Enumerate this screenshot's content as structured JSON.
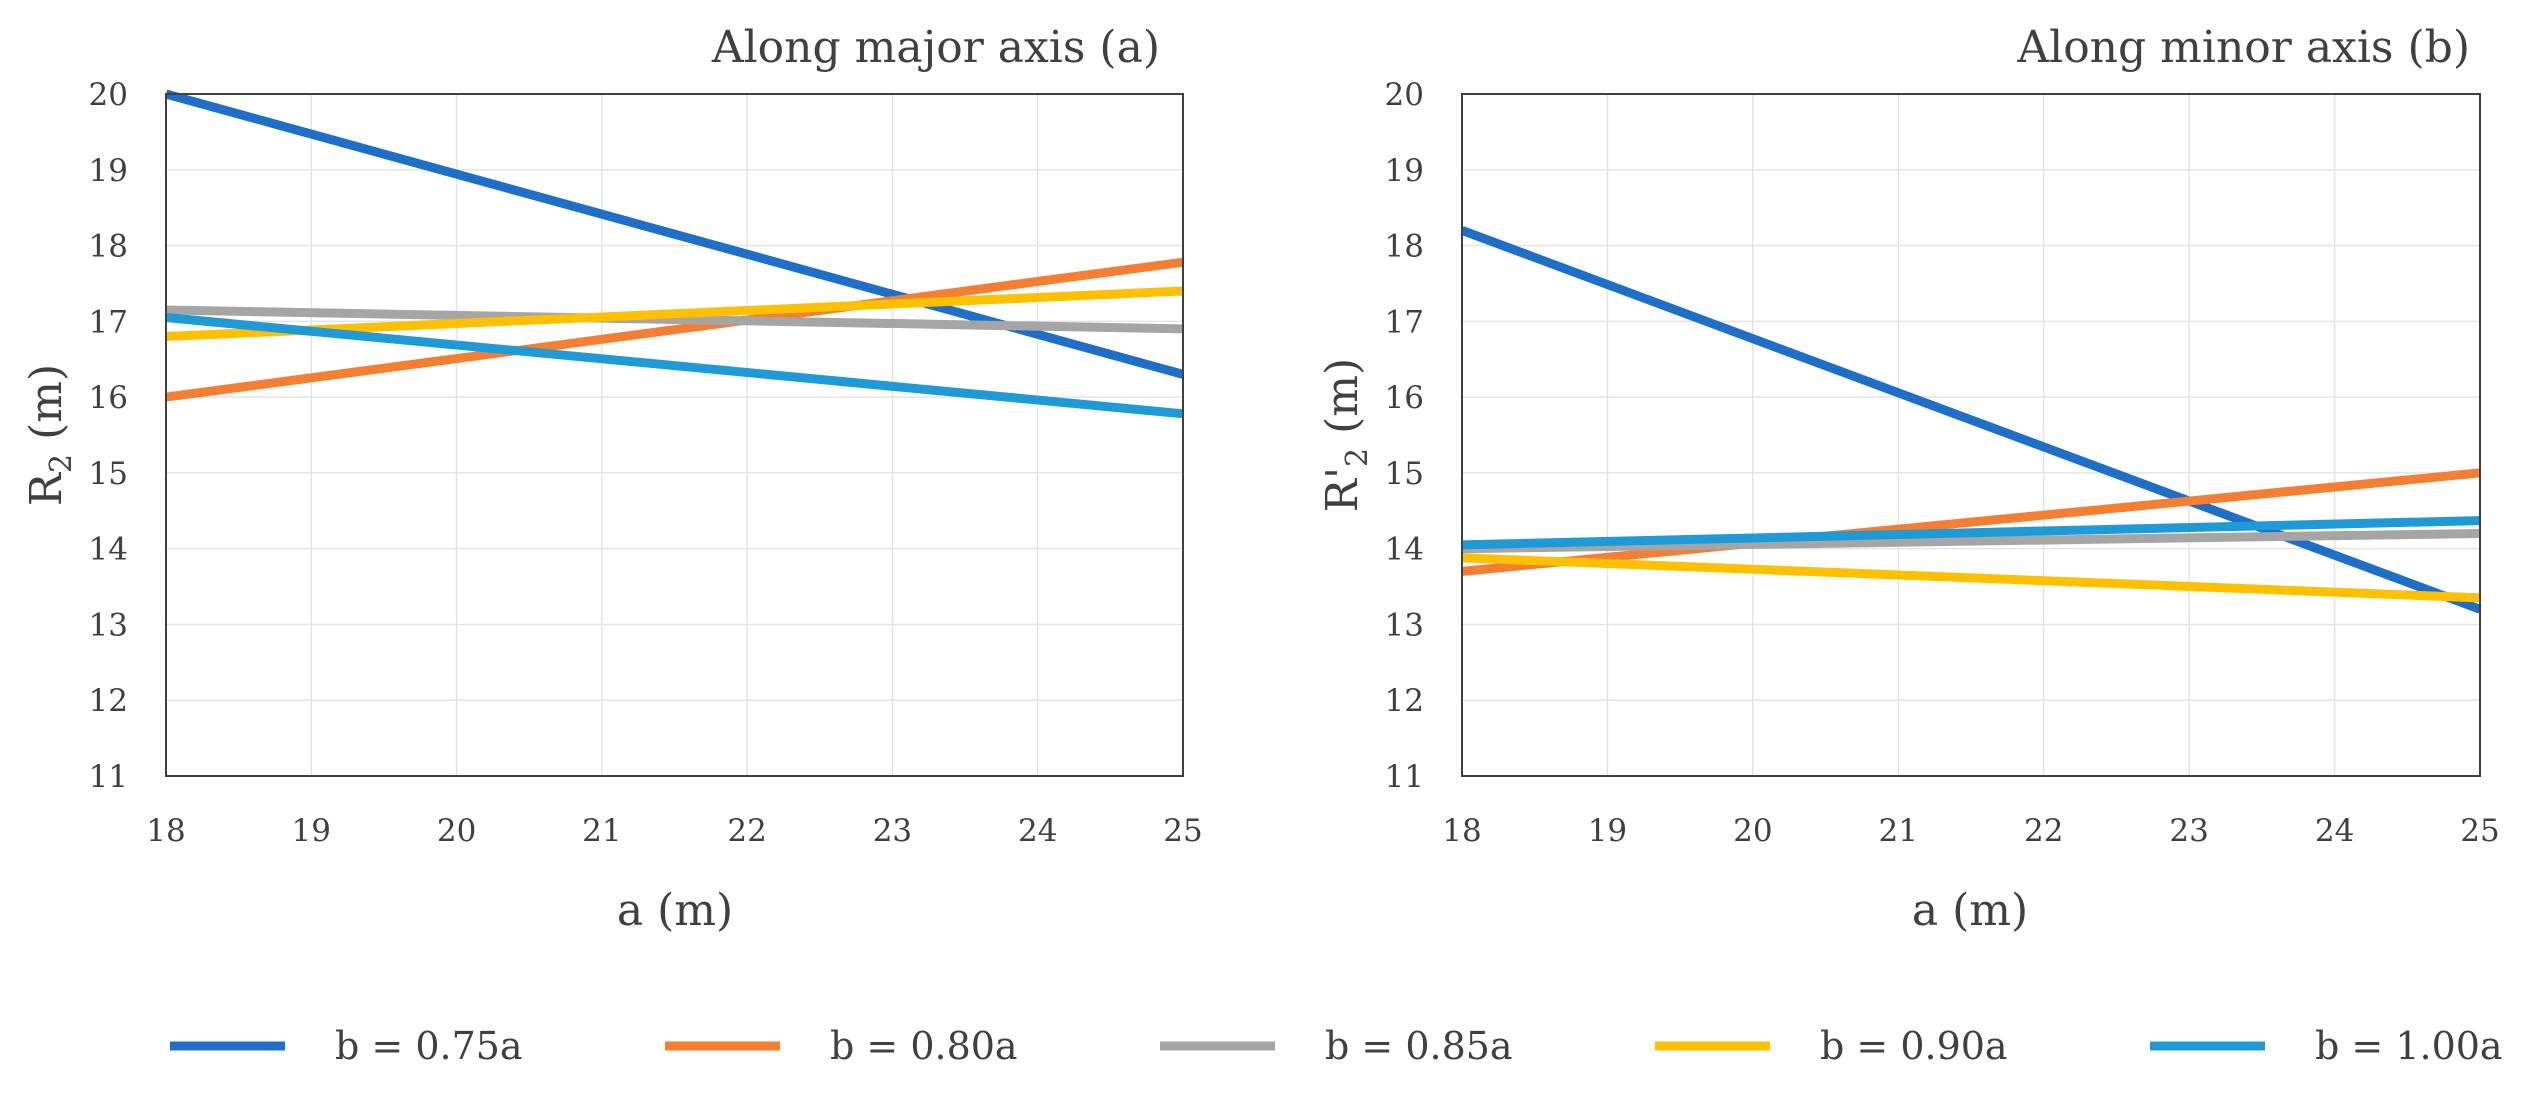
{
  "chart_data": [
    {
      "type": "line",
      "title": "Along major axis (a)",
      "xlabel": "a (m)",
      "ylabel": {
        "main": "R",
        "sub": "2",
        "unit": " (m)"
      },
      "xlim": [
        18,
        25
      ],
      "ylim": [
        11,
        20
      ],
      "xticks": [
        "18",
        "19",
        "20",
        "21",
        "22",
        "23",
        "24",
        "25"
      ],
      "yticks": [
        "11",
        "12",
        "13",
        "14",
        "15",
        "16",
        "17",
        "18",
        "19",
        "20"
      ],
      "grid": true,
      "series": [
        {
          "name": "b = 0.75a",
          "color": "#1f6fc9",
          "x": [
            18,
            25
          ],
          "values": [
            20.0,
            16.3
          ]
        },
        {
          "name": "b = 0.80a",
          "color": "#f47f33",
          "x": [
            18,
            25
          ],
          "values": [
            16.0,
            17.78
          ]
        },
        {
          "name": "b = 0.85a",
          "color": "#a5a5a5",
          "x": [
            18,
            25
          ],
          "values": [
            17.15,
            16.9
          ]
        },
        {
          "name": "b = 0.90a",
          "color": "#ffc000",
          "x": [
            18,
            25
          ],
          "values": [
            16.8,
            17.4
          ]
        },
        {
          "name": "b = 1.00a",
          "color": "#1e9bd7",
          "x": [
            18,
            25
          ],
          "values": [
            17.05,
            15.78
          ]
        }
      ]
    },
    {
      "type": "line",
      "title": "Along minor axis (b)",
      "xlabel": "a (m)",
      "ylabel": {
        "main": "R'",
        "sub": "2",
        "unit": " (m)"
      },
      "xlim": [
        18,
        25
      ],
      "ylim": [
        11,
        20
      ],
      "xticks": [
        "18",
        "19",
        "20",
        "21",
        "22",
        "23",
        "24",
        "25"
      ],
      "yticks": [
        "11",
        "12",
        "13",
        "14",
        "15",
        "16",
        "17",
        "18",
        "19",
        "20"
      ],
      "grid": true,
      "series": [
        {
          "name": "b = 0.75a",
          "color": "#1f6fc9",
          "x": [
            18,
            25
          ],
          "values": [
            18.2,
            13.2
          ]
        },
        {
          "name": "b = 0.80a",
          "color": "#f47f33",
          "x": [
            18,
            25
          ],
          "values": [
            13.7,
            15.0
          ]
        },
        {
          "name": "b = 0.85a",
          "color": "#a5a5a5",
          "x": [
            18,
            25
          ],
          "values": [
            14.0,
            14.2
          ]
        },
        {
          "name": "b = 0.90a",
          "color": "#ffc000",
          "x": [
            18,
            25
          ],
          "values": [
            13.88,
            13.35
          ]
        },
        {
          "name": "b = 1.00a",
          "color": "#1e9bd7",
          "x": [
            18,
            25
          ],
          "values": [
            14.05,
            14.37
          ]
        }
      ]
    }
  ],
  "legend": {
    "placement": "bottom",
    "entries": [
      {
        "name": "b = 0.75a",
        "color": "#1f6fc9"
      },
      {
        "name": "b = 0.80a",
        "color": "#f47f33"
      },
      {
        "name": "b = 0.85a",
        "color": "#a5a5a5"
      },
      {
        "name": "b = 0.90a",
        "color": "#ffc000"
      },
      {
        "name": "b = 1.00a",
        "color": "#1e9bd7"
      }
    ]
  }
}
